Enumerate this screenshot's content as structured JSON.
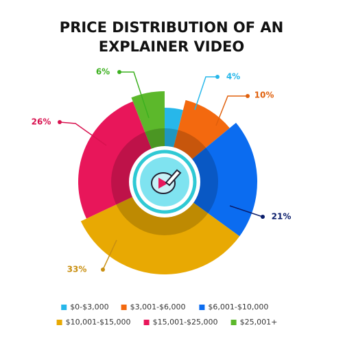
{
  "chart_data": {
    "type": "pie",
    "title": "PRICE DISTRIBUTION OF AN EXPLAINER VIDEO",
    "categories": [
      "$0-$3,000",
      "$3,001-$6,000",
      "$6,001-$10,000",
      "$10,001-$15,000",
      "$15,001-$25,000",
      "$25,001+"
    ],
    "values": [
      4,
      10,
      21,
      33,
      26,
      6
    ],
    "value_labels": [
      "4%",
      "10%",
      "21%",
      "33%",
      "26%",
      "6%"
    ],
    "colors": [
      "#27b7ea",
      "#f3690f",
      "#0b6cf0",
      "#e8a903",
      "#e8165a",
      "#5cb82b"
    ],
    "label_colors": [
      "#27b7ea",
      "#e0600c",
      "#0a1d6b",
      "#c98f10",
      "#d8124f",
      "#3cb01f"
    ],
    "legend": "bottom"
  }
}
